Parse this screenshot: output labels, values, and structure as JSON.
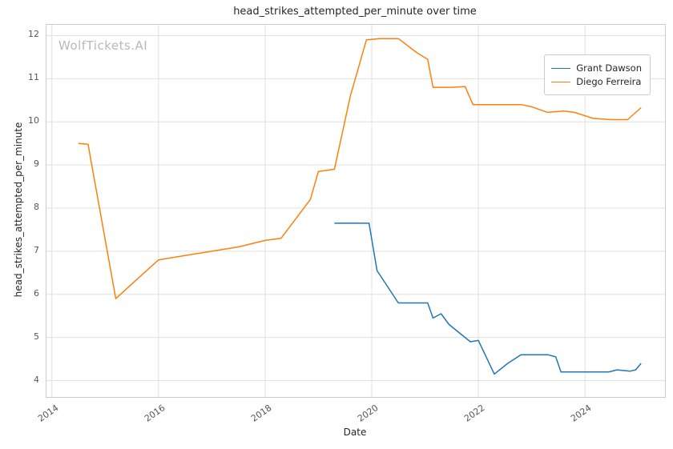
{
  "watermark": "WolfTickets.AI",
  "chart_data": {
    "type": "line",
    "title": "head_strikes_attempted_per_minute over time",
    "xlabel": "Date",
    "ylabel": "head_strikes_attempted_per_minute",
    "grid": true,
    "legend_position": "upper right",
    "x_range": [
      2013.9,
      2025.5
    ],
    "y_range": [
      3.62,
      12.25
    ],
    "y_ticks": [
      4,
      5,
      6,
      7,
      8,
      9,
      10,
      11,
      12
    ],
    "x_ticks": [
      {
        "label": "2014",
        "value": 2014
      },
      {
        "label": "2016",
        "value": 2016
      },
      {
        "label": "2018",
        "value": 2018
      },
      {
        "label": "2020",
        "value": 2020
      },
      {
        "label": "2022",
        "value": 2022
      },
      {
        "label": "2024",
        "value": 2024
      }
    ],
    "series": [
      {
        "name": "Grant Dawson",
        "color": "#1f77b4",
        "x": [
          2019.3,
          2019.95,
          2020.1,
          2020.5,
          2020.75,
          2021.05,
          2021.15,
          2021.3,
          2021.45,
          2021.85,
          2022.0,
          2022.3,
          2022.55,
          2022.8,
          2023.3,
          2023.45,
          2023.55,
          2023.8,
          2024.1,
          2024.45,
          2024.6,
          2024.85,
          2024.95,
          2025.05
        ],
        "y": [
          7.65,
          7.65,
          6.55,
          5.8,
          5.8,
          5.8,
          5.45,
          5.55,
          5.3,
          4.9,
          4.93,
          4.15,
          4.4,
          4.6,
          4.6,
          4.55,
          4.2,
          4.2,
          4.2,
          4.2,
          4.25,
          4.22,
          4.25,
          4.4
        ]
      },
      {
        "name": "Diego Ferreira",
        "color": "#ff7f0e",
        "x": [
          2014.5,
          2014.68,
          2015.2,
          2015.6,
          2016.0,
          2016.5,
          2017.0,
          2017.5,
          2018.0,
          2018.3,
          2018.85,
          2019.0,
          2019.3,
          2019.6,
          2019.9,
          2020.15,
          2020.5,
          2020.85,
          2021.05,
          2021.15,
          2021.5,
          2021.75,
          2021.9,
          2022.3,
          2022.8,
          2023.0,
          2023.3,
          2023.6,
          2023.8,
          2024.15,
          2024.5,
          2024.8,
          2025.05
        ],
        "y": [
          9.5,
          9.48,
          5.9,
          6.35,
          6.8,
          6.9,
          7.0,
          7.1,
          7.25,
          7.3,
          8.2,
          8.85,
          8.9,
          10.6,
          11.9,
          11.93,
          11.93,
          11.6,
          11.45,
          10.8,
          10.8,
          10.82,
          10.4,
          10.4,
          10.4,
          10.35,
          10.22,
          10.25,
          10.22,
          10.08,
          10.05,
          10.05,
          10.33
        ]
      }
    ]
  }
}
